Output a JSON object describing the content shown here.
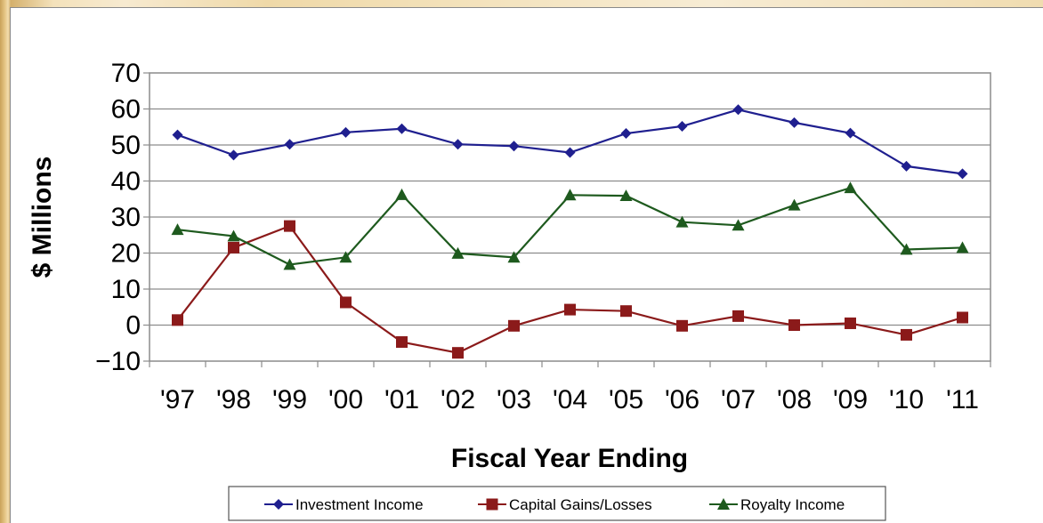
{
  "chart_data": {
    "type": "line",
    "title": "",
    "xlabel": "Fiscal Year Ending",
    "ylabel": "$ Millions",
    "ylim": [
      -10,
      70
    ],
    "yticks": [
      -10,
      0,
      10,
      20,
      30,
      40,
      50,
      60,
      70
    ],
    "grid": "horizontal",
    "legend": "bottom",
    "categories": [
      "'97",
      "'98",
      "'99",
      "'00",
      "'01",
      "'02",
      "'03",
      "'04",
      "'05",
      "'06",
      "'07",
      "'08",
      "'09",
      "'10",
      "'11"
    ],
    "series": [
      {
        "name": "Investment Income",
        "color": "#1f1f8f",
        "marker": "diamond",
        "values": [
          52.8,
          47.2,
          50.2,
          53.5,
          54.5,
          50.2,
          49.7,
          47.9,
          53.2,
          55.2,
          59.8,
          56.2,
          53.3,
          44.1,
          42.0
        ]
      },
      {
        "name": "Capital Gains/Losses",
        "color": "#8b1a1a",
        "marker": "square",
        "values": [
          1.4,
          21.5,
          27.5,
          6.3,
          -4.7,
          -7.7,
          -0.2,
          4.3,
          3.9,
          -0.2,
          2.5,
          0.0,
          0.5,
          -2.7,
          2.1
        ]
      },
      {
        "name": "Royalty Income",
        "color": "#1e5a1e",
        "marker": "triangle",
        "values": [
          26.5,
          24.7,
          16.8,
          18.8,
          36.2,
          19.9,
          18.8,
          36.1,
          35.9,
          28.6,
          27.7,
          33.3,
          38.1,
          21.0,
          21.5
        ]
      }
    ]
  }
}
